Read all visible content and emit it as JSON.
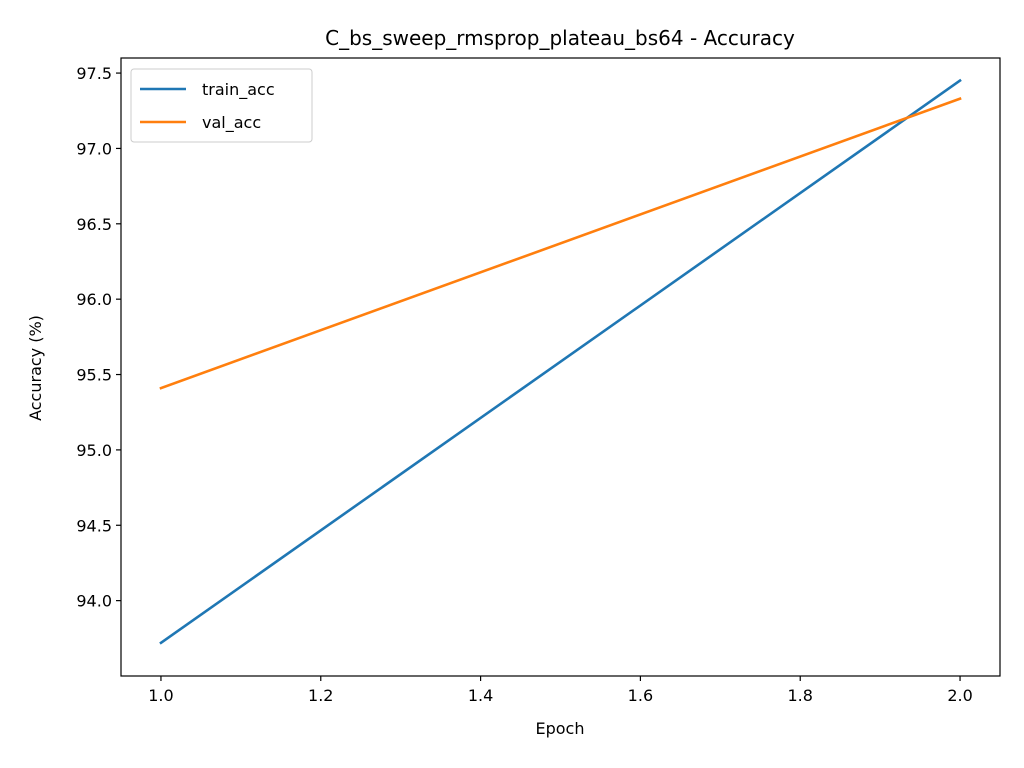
{
  "chart_data": {
    "type": "line",
    "title": "C_bs_sweep_rmsprop_plateau_bs64 - Accuracy",
    "xlabel": "Epoch",
    "ylabel": "Accuracy (%)",
    "x": [
      1.0,
      2.0
    ],
    "xlim": [
      0.95,
      2.05
    ],
    "ylim": [
      93.5,
      97.6
    ],
    "xticks": [
      1.0,
      1.2,
      1.4,
      1.6,
      1.8,
      2.0
    ],
    "xtick_labels": [
      "1.0",
      "1.2",
      "1.4",
      "1.6",
      "1.8",
      "2.0"
    ],
    "yticks": [
      94.0,
      94.5,
      95.0,
      95.5,
      96.0,
      96.5,
      97.0,
      97.5
    ],
    "ytick_labels": [
      "94.0",
      "94.5",
      "95.0",
      "95.5",
      "96.0",
      "96.5",
      "97.0",
      "97.5"
    ],
    "grid": false,
    "legend_position": "top-left",
    "series": [
      {
        "name": "train_acc",
        "color": "#1f77b4",
        "values": [
          93.72,
          97.45
        ]
      },
      {
        "name": "val_acc",
        "color": "#ff7f0e",
        "values": [
          95.41,
          97.33
        ]
      }
    ]
  }
}
